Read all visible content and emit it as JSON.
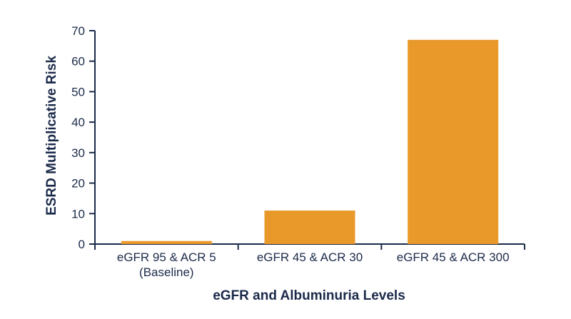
{
  "chart_data": {
    "type": "bar",
    "categories": [
      [
        "eGFR 95 & ACR 5",
        "(Baseline)"
      ],
      [
        "eGFR 45 & ACR 30"
      ],
      [
        "eGFR 45 & ACR 300"
      ]
    ],
    "values": [
      1,
      11,
      67
    ],
    "xlabel": "eGFR and Albuminuria Levels",
    "ylabel": "ESRD Multiplicative Risk",
    "ylim": [
      0,
      70
    ],
    "yticks": [
      0,
      10,
      20,
      30,
      40,
      50,
      60,
      70
    ],
    "grid": false,
    "legend": "none"
  },
  "colors": {
    "bar": "#e8992a",
    "axis": "#1b2a4a",
    "text": "#1b2a4a"
  }
}
